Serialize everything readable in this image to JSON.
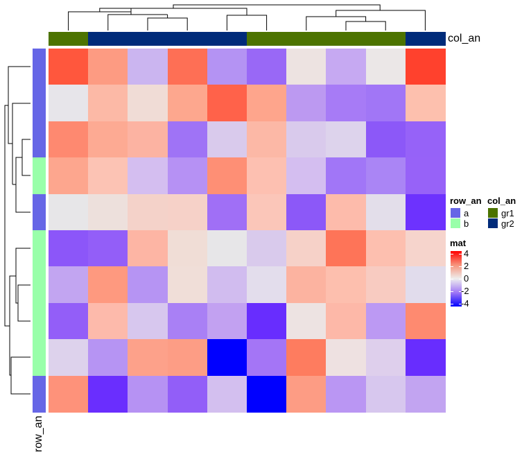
{
  "chart_data": {
    "type": "heatmap",
    "title": "",
    "matrix_name": "mat",
    "n_rows": 10,
    "n_cols": 10,
    "values": [
      [
        3.0,
        1.6,
        -0.7,
        2.5,
        -1.3,
        -2.2,
        0.1,
        -0.9,
        0.0,
        3.5
      ],
      [
        0.0,
        1.0,
        0.3,
        1.4,
        2.8,
        1.4,
        -1.2,
        -1.7,
        -1.8,
        0.9
      ],
      [
        2.0,
        1.3,
        1.1,
        -1.9,
        -0.4,
        1.0,
        -0.4,
        -0.3,
        -2.5,
        -2.3
      ],
      [
        1.4,
        0.8,
        -0.6,
        -1.3,
        1.9,
        0.9,
        -0.6,
        -1.8,
        -1.6,
        -2.3
      ],
      [
        0.0,
        0.2,
        0.5,
        0.5,
        -1.9,
        0.7,
        -2.5,
        1.0,
        -0.2,
        -3.2
      ],
      [
        -2.5,
        -2.4,
        1.1,
        0.3,
        0.0,
        -0.4,
        0.5,
        2.4,
        0.9,
        0.4
      ],
      [
        -1.0,
        1.7,
        -1.3,
        0.2,
        -0.7,
        -0.2,
        1.1,
        0.9,
        0.6,
        -0.2
      ],
      [
        -2.4,
        1.0,
        -0.5,
        -1.6,
        -1.0,
        -3.3,
        0.1,
        1.0,
        -1.2,
        2.0
      ],
      [
        -0.3,
        -1.3,
        1.5,
        1.6,
        -4.0,
        -1.8,
        2.2,
        0.1,
        -0.3,
        -3.3
      ],
      [
        1.8,
        -3.3,
        -1.3,
        -2.4,
        -0.6,
        -4.0,
        1.6,
        -1.2,
        -0.5,
        -1.0
      ]
    ],
    "cell_colors": [
      [
        "#FF573D",
        "#FD9B82",
        "#CBB5F0",
        "#FE6F55",
        "#B493F3",
        "#9968F6",
        "#EDE3E1",
        "#C6A9F2",
        "#EBE7E7",
        "#FF412D"
      ],
      [
        "#E7E5EA",
        "#FCB9A6",
        "#F0DCD6",
        "#FDA78E",
        "#FF624A",
        "#FEA58C",
        "#BC99F1",
        "#A77BF6",
        "#A176F6",
        "#FDC0AE"
      ],
      [
        "#FE8970",
        "#FDAA93",
        "#FCB3A2",
        "#9F73F6",
        "#D9CAEC",
        "#FCB8A6",
        "#D9CAEC",
        "#DDD3EC",
        "#8C58F8",
        "#9662F8"
      ],
      [
        "#FDA68E",
        "#FCC3B4",
        "#D4BEF0",
        "#B691F4",
        "#FE8F75",
        "#FDC0B1",
        "#D4BEF0",
        "#A176F7",
        "#AA85F5",
        "#9762F8"
      ],
      [
        "#E7E6E8",
        "#EDE0DC",
        "#F4D2C9",
        "#F6D1C8",
        "#A06FF6",
        "#FBC6B9",
        "#8C58F8",
        "#FDBBAB",
        "#E3DEEA",
        "#6D32FE"
      ],
      [
        "#8C56F9",
        "#935EF8",
        "#FDB5A4",
        "#F0DDD6",
        "#E7E6E8",
        "#D9CAEC",
        "#F6D1C8",
        "#FE7458",
        "#FDBFAF",
        "#F6D4CC"
      ],
      [
        "#C2A5F1",
        "#FE997F",
        "#B694F3",
        "#F0DED8",
        "#D1BCEF",
        "#E3DDEC",
        "#FCB3A0",
        "#FDBFAE",
        "#F8CBC1",
        "#E1DCEC"
      ],
      [
        "#935EF8",
        "#FDBAAB",
        "#D7C7EE",
        "#A980F5",
        "#C2A1F1",
        "#682DFE",
        "#EDE3E2",
        "#FDB8A8",
        "#BC99F3",
        "#FE8A70"
      ],
      [
        "#DDD2EC",
        "#B694F3",
        "#FDA18A",
        "#FD9D85",
        "#0000FF",
        "#A475F6",
        "#FE7C5F",
        "#EEE1E1",
        "#DECFEC",
        "#682DFE"
      ],
      [
        "#FE927A",
        "#6A2EFE",
        "#B692F3",
        "#925EF8",
        "#D3BFEF",
        "#0000FF",
        "#FD9C84",
        "#BA96F3",
        "#D7C7EE",
        "#C2A4F1"
      ]
    ],
    "row_annotation": {
      "name": "row_an",
      "values": [
        "a",
        "a",
        "a",
        "b",
        "a",
        "b",
        "b",
        "b",
        "b",
        "a"
      ]
    },
    "col_annotation": {
      "name": "col_an",
      "values": [
        "gr1",
        "gr2",
        "gr2",
        "gr2",
        "gr2",
        "gr1",
        "gr1",
        "gr1",
        "gr1",
        "gr2"
      ]
    },
    "color_scale": {
      "name": "mat",
      "range": [
        -4,
        4
      ],
      "ticks": [
        "4",
        "2",
        "0",
        "-2",
        "-4"
      ],
      "colors": {
        "low": "#0000FF",
        "mid": "#EEEEEE",
        "high": "#FF0000"
      }
    },
    "row_dendrogram": true,
    "col_dendrogram": true,
    "legend_position": "right"
  },
  "annotations": {
    "row": {
      "title": "row_an",
      "levels": [
        {
          "label": "a",
          "color": "#6666E6"
        },
        {
          "label": "b",
          "color": "#99FFAA"
        }
      ]
    },
    "col": {
      "title": "col_an",
      "levels": [
        {
          "label": "gr1",
          "color": "#4C7300"
        },
        {
          "label": "gr2",
          "color": "#002B7A"
        }
      ]
    }
  },
  "labels": {
    "col_annotation_side": "col_an",
    "row_annotation_bottom": "row_an"
  },
  "legend": {
    "mat_title": "mat",
    "ticks": [
      "4",
      "2",
      "0",
      "-2",
      "-4"
    ]
  }
}
